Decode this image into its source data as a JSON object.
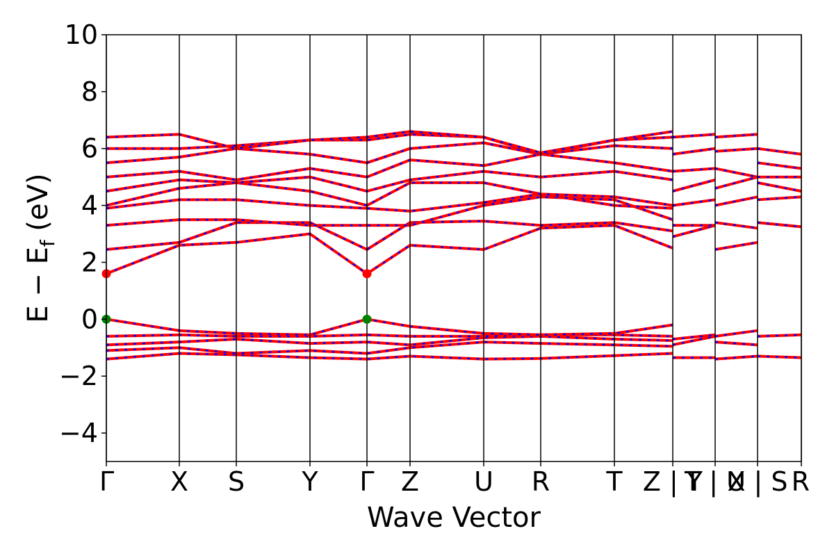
{
  "chart_data": {
    "type": "line",
    "xlabel": "Wave Vector",
    "ylabel": "E − E",
    "ylabel_subscript": "f",
    "ylabel_unit": "(eV)",
    "ylim": [
      -5,
      10
    ],
    "yticks": [
      -4,
      -2,
      0,
      2,
      4,
      6,
      8,
      10
    ],
    "xlim": [
      0,
      1
    ],
    "kpath_positions": [
      0,
      0.105,
      0.187,
      0.293,
      0.375,
      0.437,
      0.543,
      0.625,
      0.731,
      0.815,
      0.876,
      0.937,
      1.0
    ],
    "kpath_labels": [
      "Γ",
      "X",
      "S",
      "Y",
      "Γ",
      "Z",
      "U",
      "R",
      "T",
      "Z | Y",
      "T | U",
      "X | S",
      "R"
    ],
    "series_colors": {
      "spin_a": "#ff0000",
      "spin_b": "#0000ff"
    },
    "markers": [
      {
        "k": 0.0,
        "energy": 1.6,
        "color": "#ff0000"
      },
      {
        "k": 0.375,
        "energy": 1.6,
        "color": "#ff0000"
      },
      {
        "k": 0.0,
        "energy": 0.0,
        "color": "#008000"
      },
      {
        "k": 0.375,
        "energy": 0.0,
        "color": "#008000"
      }
    ],
    "bands": [
      {
        "k": [
          0,
          0.105,
          0.187,
          0.293,
          0.375,
          0.437,
          0.543,
          0.625,
          0.731,
          0.815
        ],
        "energy": [
          -1.4,
          -1.2,
          -1.25,
          -1.35,
          -1.4,
          -1.3,
          -1.4,
          -1.38,
          -1.28,
          -1.2
        ]
      },
      {
        "k": [
          0,
          0.105,
          0.187,
          0.293,
          0.375,
          0.437,
          0.543,
          0.625,
          0.731,
          0.815
        ],
        "energy": [
          -1.1,
          -1.0,
          -1.2,
          -1.1,
          -1.2,
          -1.0,
          -0.8,
          -0.85,
          -0.9,
          -0.95
        ]
      },
      {
        "k": [
          0,
          0.105,
          0.187,
          0.293,
          0.375,
          0.437,
          0.543,
          0.625,
          0.731,
          0.815
        ],
        "energy": [
          -0.9,
          -0.8,
          -0.7,
          -0.85,
          -0.8,
          -0.9,
          -0.65,
          -0.6,
          -0.7,
          -0.75
        ]
      },
      {
        "k": [
          0,
          0.105,
          0.187,
          0.293,
          0.375,
          0.437,
          0.543,
          0.625,
          0.731,
          0.815
        ],
        "energy": [
          -0.6,
          -0.55,
          -0.6,
          -0.6,
          -0.55,
          -0.6,
          -0.6,
          -0.55,
          -0.55,
          -0.6
        ]
      },
      {
        "k": [
          0,
          0.105,
          0.187,
          0.293,
          0.375,
          0.437,
          0.543,
          0.625,
          0.731,
          0.815
        ],
        "energy": [
          0.0,
          -0.4,
          -0.5,
          -0.55,
          0.0,
          -0.25,
          -0.5,
          -0.55,
          -0.5,
          -0.2
        ]
      },
      {
        "k": [
          0,
          0.105,
          0.187,
          0.293,
          0.375,
          0.437,
          0.543,
          0.625,
          0.731,
          0.815
        ],
        "energy": [
          1.6,
          2.6,
          2.7,
          3.0,
          1.6,
          2.6,
          2.45,
          3.2,
          3.3,
          2.5
        ]
      },
      {
        "k": [
          0,
          0.105,
          0.187,
          0.293,
          0.375,
          0.437,
          0.543,
          0.625,
          0.731,
          0.815
        ],
        "energy": [
          2.45,
          2.7,
          3.4,
          3.4,
          2.45,
          3.4,
          3.45,
          3.3,
          3.4,
          3.1
        ]
      },
      {
        "k": [
          0,
          0.105,
          0.187,
          0.293,
          0.375,
          0.437,
          0.543,
          0.625,
          0.731,
          0.815
        ],
        "energy": [
          3.3,
          3.5,
          3.5,
          3.3,
          3.3,
          3.3,
          4.0,
          4.3,
          4.2,
          3.5
        ]
      },
      {
        "k": [
          0,
          0.105,
          0.187,
          0.293,
          0.375,
          0.437,
          0.543,
          0.625,
          0.731,
          0.815
        ],
        "energy": [
          3.9,
          4.2,
          4.2,
          4.0,
          3.9,
          3.8,
          4.1,
          4.4,
          4.0,
          3.9
        ]
      },
      {
        "k": [
          0,
          0.105,
          0.187,
          0.293,
          0.375,
          0.437,
          0.543,
          0.625,
          0.731,
          0.815
        ],
        "energy": [
          4.0,
          4.6,
          4.8,
          4.5,
          4.0,
          4.8,
          4.8,
          4.4,
          4.3,
          4.0
        ]
      },
      {
        "k": [
          0,
          0.105,
          0.187,
          0.293,
          0.375,
          0.437,
          0.543,
          0.625,
          0.731,
          0.815
        ],
        "energy": [
          4.5,
          4.9,
          4.8,
          5.0,
          4.5,
          4.9,
          5.2,
          5.0,
          5.2,
          4.9
        ]
      },
      {
        "k": [
          0,
          0.105,
          0.187,
          0.293,
          0.375,
          0.437,
          0.543,
          0.625,
          0.731,
          0.815
        ],
        "energy": [
          5.0,
          5.2,
          4.9,
          5.3,
          5.0,
          5.6,
          5.4,
          5.8,
          5.5,
          5.2
        ]
      },
      {
        "k": [
          0,
          0.105,
          0.187,
          0.293,
          0.375,
          0.437,
          0.543,
          0.625,
          0.731,
          0.815
        ],
        "energy": [
          5.5,
          5.7,
          6.0,
          5.8,
          5.5,
          6.0,
          6.2,
          5.8,
          6.1,
          6.0
        ]
      },
      {
        "k": [
          0,
          0.105,
          0.187,
          0.293,
          0.375,
          0.437,
          0.543,
          0.625,
          0.731,
          0.815
        ],
        "energy": [
          6.0,
          6.0,
          6.1,
          6.3,
          6.3,
          6.5,
          6.4,
          5.8,
          6.3,
          6.4
        ]
      },
      {
        "k": [
          0,
          0.105,
          0.187,
          0.293,
          0.375,
          0.437,
          0.543,
          0.625,
          0.731,
          0.815
        ],
        "energy": [
          6.4,
          6.5,
          6.0,
          6.3,
          6.4,
          6.6,
          6.4,
          5.85,
          6.3,
          6.6
        ]
      },
      {
        "k": [
          0.815,
          0.876
        ],
        "energy": [
          -1.35,
          -1.35
        ]
      },
      {
        "k": [
          0.815,
          0.876
        ],
        "energy": [
          -0.9,
          -0.6
        ]
      },
      {
        "k": [
          0.815,
          0.876
        ],
        "energy": [
          -0.7,
          -0.55
        ]
      },
      {
        "k": [
          0.815,
          0.876
        ],
        "energy": [
          2.9,
          3.3
        ]
      },
      {
        "k": [
          0.815,
          0.876
        ],
        "energy": [
          3.3,
          3.3
        ]
      },
      {
        "k": [
          0.815,
          0.876
        ],
        "energy": [
          4.0,
          4.2
        ]
      },
      {
        "k": [
          0.815,
          0.876
        ],
        "energy": [
          4.5,
          4.9
        ]
      },
      {
        "k": [
          0.815,
          0.876
        ],
        "energy": [
          5.2,
          5.3
        ]
      },
      {
        "k": [
          0.815,
          0.876
        ],
        "energy": [
          5.8,
          6.0
        ]
      },
      {
        "k": [
          0.815,
          0.876
        ],
        "energy": [
          6.4,
          6.5
        ]
      },
      {
        "k": [
          0.876,
          0.937
        ],
        "energy": [
          -1.4,
          -1.3
        ]
      },
      {
        "k": [
          0.876,
          0.937
        ],
        "energy": [
          -0.8,
          -0.9
        ]
      },
      {
        "k": [
          0.876,
          0.937
        ],
        "energy": [
          -0.6,
          -0.4
        ]
      },
      {
        "k": [
          0.876,
          0.937
        ],
        "energy": [
          2.45,
          2.7
        ]
      },
      {
        "k": [
          0.876,
          0.937
        ],
        "energy": [
          3.4,
          3.2
        ]
      },
      {
        "k": [
          0.876,
          0.937
        ],
        "energy": [
          4.0,
          4.3
        ]
      },
      {
        "k": [
          0.876,
          0.937
        ],
        "energy": [
          4.6,
          5.0
        ]
      },
      {
        "k": [
          0.876,
          0.937
        ],
        "energy": [
          5.3,
          5.0
        ]
      },
      {
        "k": [
          0.876,
          0.937
        ],
        "energy": [
          5.9,
          6.0
        ]
      },
      {
        "k": [
          0.876,
          0.937
        ],
        "energy": [
          6.4,
          6.5
        ]
      },
      {
        "k": [
          0.937,
          1.0
        ],
        "energy": [
          -1.3,
          -1.35
        ]
      },
      {
        "k": [
          0.937,
          1.0
        ],
        "energy": [
          -0.6,
          -0.55
        ]
      },
      {
        "k": [
          0.937,
          1.0
        ],
        "energy": [
          3.4,
          3.25
        ]
      },
      {
        "k": [
          0.937,
          1.0
        ],
        "energy": [
          4.2,
          4.3
        ]
      },
      {
        "k": [
          0.937,
          1.0
        ],
        "energy": [
          4.8,
          4.5
        ]
      },
      {
        "k": [
          0.937,
          1.0
        ],
        "energy": [
          5.0,
          5.0
        ]
      },
      {
        "k": [
          0.937,
          1.0
        ],
        "energy": [
          5.5,
          5.3
        ]
      },
      {
        "k": [
          0.937,
          1.0
        ],
        "energy": [
          6.0,
          5.8
        ]
      }
    ]
  }
}
